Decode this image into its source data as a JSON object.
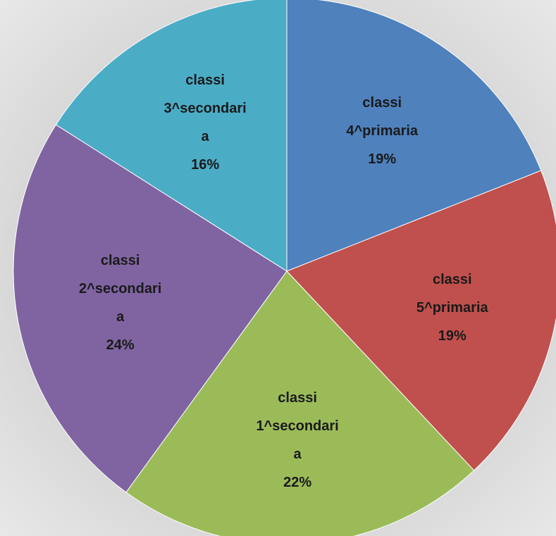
{
  "chart_data": {
    "type": "pie",
    "categories": [
      "classi 4^primaria",
      "classi 5^primaria",
      "classi 1^secondaria",
      "classi 2^secondaria",
      "classi 3^secondaria"
    ],
    "values": [
      19,
      19,
      22,
      24,
      16
    ],
    "value_labels": [
      "19%",
      "19%",
      "22%",
      "24%",
      "16%"
    ],
    "colors": [
      "#4f81bd",
      "#c0504d",
      "#9bbb59",
      "#8064a2",
      "#4bacc6"
    ]
  }
}
